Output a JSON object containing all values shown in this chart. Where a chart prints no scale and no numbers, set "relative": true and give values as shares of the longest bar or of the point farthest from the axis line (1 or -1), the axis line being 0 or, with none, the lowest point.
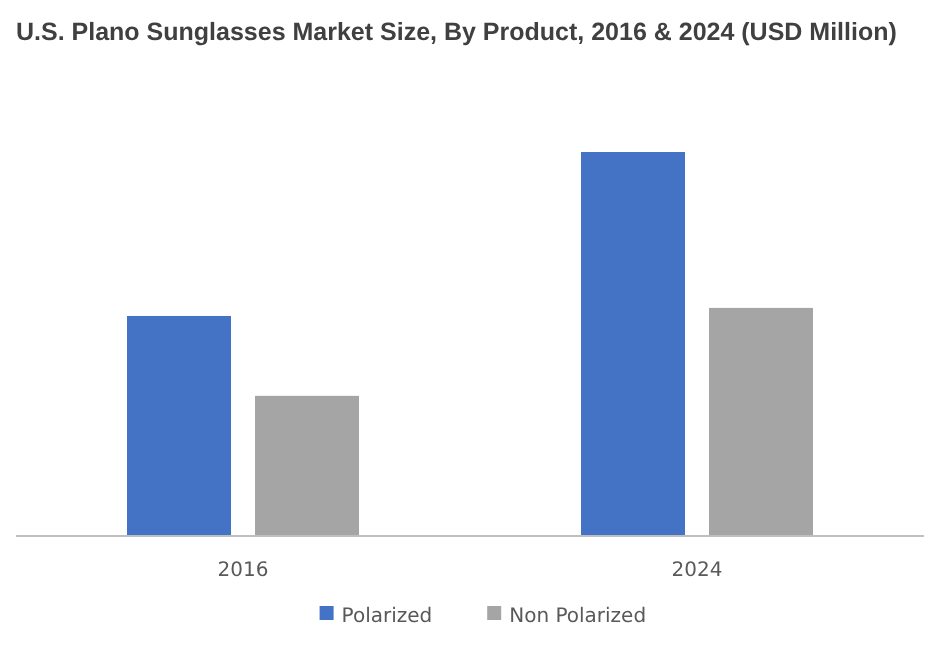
{
  "chart_data": {
    "type": "bar",
    "title": "U.S. Plano Sunglasses Market Size, By Product, 2016 & 2024 (USD Million)",
    "categories": [
      "2016",
      "2024"
    ],
    "relative": true,
    "legend": "bottom",
    "series": [
      {
        "name": "Polarized",
        "color": "#4472c4",
        "values": [
          0.573,
          1
        ]
      },
      {
        "name": "Non Polarized",
        "color": "#a5a5a5",
        "values": [
          0.365,
          0.594
        ]
      }
    ]
  }
}
